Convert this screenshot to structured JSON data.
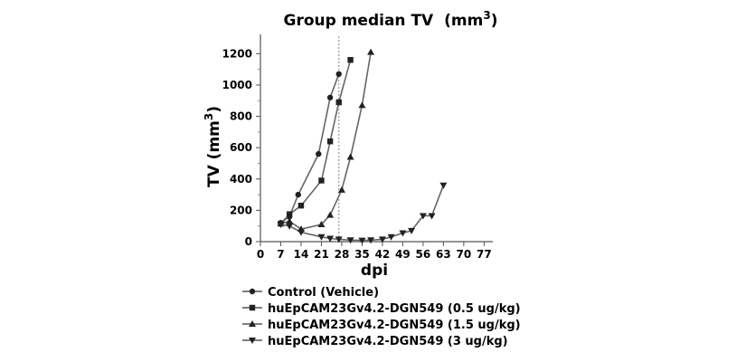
{
  "chart_data": {
    "type": "line",
    "title": "Group median TV",
    "title_unit_base": "(mm",
    "title_unit_exp": "3",
    "title_unit_close": ")",
    "xlabel": "dpi",
    "ylabel_base": "TV (mm",
    "ylabel_exp": "3",
    "ylabel_close": ")",
    "xlim": [
      0,
      80
    ],
    "ylim": [
      0,
      1300
    ],
    "xticks": [
      "0",
      "7",
      "14",
      "21",
      "28",
      "35",
      "42",
      "49",
      "56",
      "63",
      "70",
      "77"
    ],
    "xtick_values": [
      0,
      7,
      14,
      21,
      28,
      35,
      42,
      49,
      56,
      63,
      70,
      77
    ],
    "yticks": [
      "0",
      "200",
      "400",
      "600",
      "800",
      "1000",
      "1200"
    ],
    "ytick_values": [
      0,
      200,
      400,
      600,
      800,
      1000,
      1200
    ],
    "reference_line_x": 27,
    "grid": false,
    "legend_position": "bottom",
    "series": [
      {
        "name": "Control (Vehicle)",
        "marker": "circle",
        "color": "#222222",
        "x": [
          7,
          10,
          13,
          20,
          24,
          27
        ],
        "y": [
          120,
          160,
          300,
          560,
          920,
          1070
        ]
      },
      {
        "name": "huEpCAM23Gv4.2-DGN549 (0.5 ug/kg)",
        "marker": "square",
        "color": "#222222",
        "x": [
          7,
          10,
          14,
          21,
          24,
          27,
          31
        ],
        "y": [
          115,
          175,
          230,
          390,
          640,
          890,
          1160
        ]
      },
      {
        "name": "huEpCAM23Gv4.2-DGN549 (1.5 ug/kg)",
        "marker": "triangle-up",
        "color": "#222222",
        "x": [
          7,
          10,
          14,
          21,
          24,
          28,
          31,
          35,
          38
        ],
        "y": [
          115,
          130,
          80,
          110,
          170,
          330,
          540,
          870,
          1210
        ]
      },
      {
        "name": "huEpCAM23Gv4.2-DGN549 (3 ug/kg)",
        "marker": "triangle-down",
        "color": "#222222",
        "x": [
          7,
          10,
          14,
          21,
          24,
          27,
          31,
          35,
          38,
          42,
          45,
          49,
          52,
          56,
          59,
          63
        ],
        "y": [
          110,
          100,
          60,
          30,
          20,
          15,
          10,
          8,
          10,
          15,
          30,
          55,
          70,
          165,
          165,
          360
        ]
      }
    ]
  }
}
